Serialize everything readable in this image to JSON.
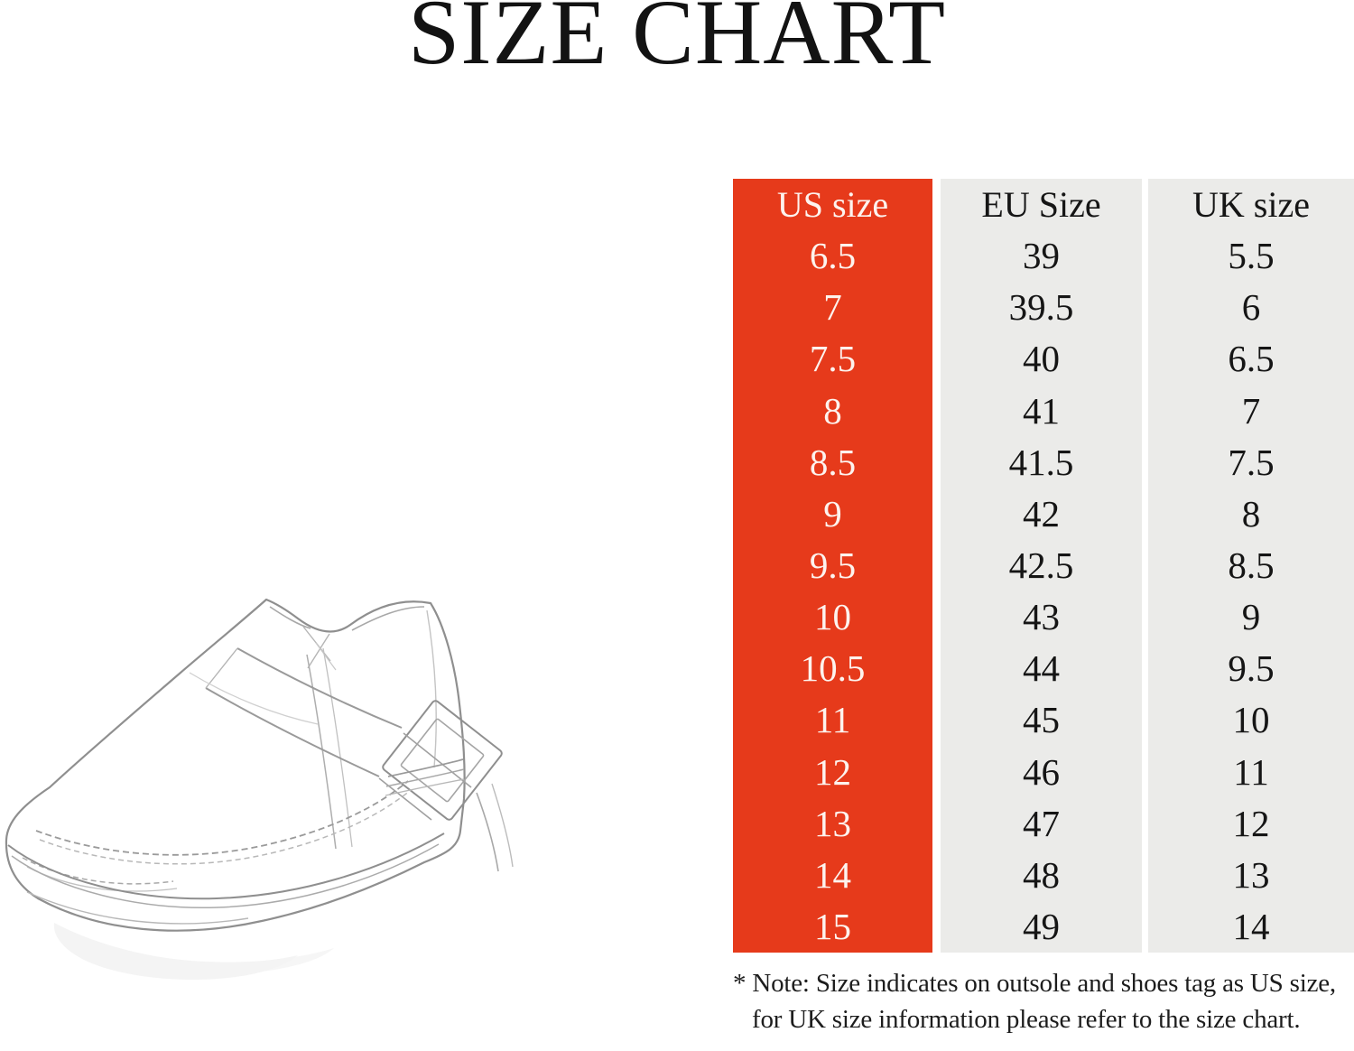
{
  "title": "SIZE CHART",
  "chart_data": {
    "type": "table",
    "title": "SIZE CHART",
    "columns": [
      {
        "id": "us",
        "header": "US size",
        "values": [
          "6.5",
          "7",
          "7.5",
          "8",
          "8.5",
          "9",
          "9.5",
          "10",
          "10.5",
          "11",
          "12",
          "13",
          "14",
          "15"
        ]
      },
      {
        "id": "eu",
        "header": "EU Size",
        "values": [
          "39",
          "39.5",
          "40",
          "41",
          "41.5",
          "42",
          "42.5",
          "43",
          "44",
          "45",
          "46",
          "47",
          "48",
          "49"
        ]
      },
      {
        "id": "uk",
        "header": "UK size",
        "values": [
          "5.5",
          "6",
          "6.5",
          "7",
          "7.5",
          "8",
          "8.5",
          "9",
          "9.5",
          "10",
          "11",
          "12",
          "13",
          "14"
        ]
      }
    ],
    "layout_hints": {
      "highlighted_column": "US size",
      "rows": 14,
      "grid": false
    }
  },
  "note": {
    "line1": "* Note: Size indicates on outsole and shoes tag as US size,",
    "line2": "for UK size information please refer to the size chart."
  },
  "colors": {
    "us_column_bg": "#e63a1b",
    "us_column_text": "#fdf3ee",
    "other_column_bg": "#ebebe9",
    "table_text": "#151515",
    "title_text": "#131313"
  },
  "illustration": {
    "name": "mens-monk-strap-dress-shoe-sketch"
  }
}
